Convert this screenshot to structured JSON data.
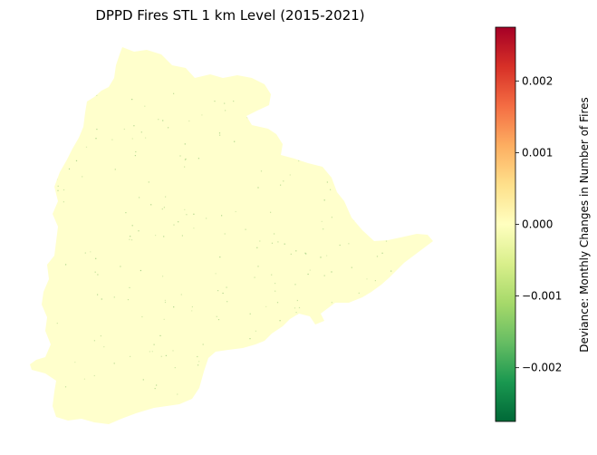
{
  "title": "DPPD Fires STL 1 km Level (2015-2021)",
  "colorbar": {
    "label": "Deviance: Monthly Changes in Number of Fires",
    "colormap": "RdYlGn_r",
    "range": [
      -0.00275,
      0.00275
    ],
    "ticks": [
      {
        "value": 0.002,
        "label": "0.002"
      },
      {
        "value": 0.001,
        "label": "0.001"
      },
      {
        "value": 0.0,
        "label": "0.000"
      },
      {
        "value": -0.001,
        "label": "−0.001"
      },
      {
        "value": -0.002,
        "label": "−0.002"
      }
    ],
    "colors": [
      "#006837",
      "#1a9850",
      "#66bd63",
      "#a6d96a",
      "#d9ef8b",
      "#ffffbf",
      "#fee08b",
      "#fdae61",
      "#f46d43",
      "#d73027",
      "#a50026"
    ]
  },
  "map": {
    "fill_color": "#ffffcc",
    "accent_color": "#86c06c"
  }
}
